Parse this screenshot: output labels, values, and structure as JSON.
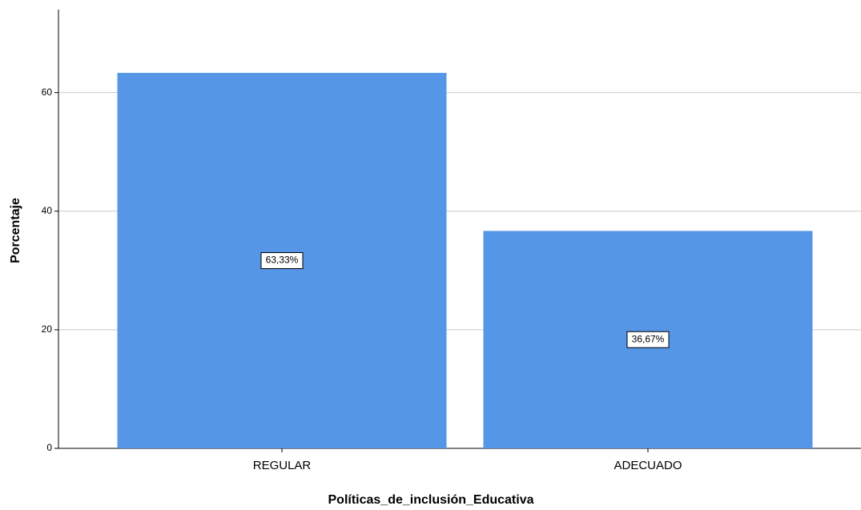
{
  "chart_data": {
    "type": "bar",
    "categories": [
      "REGULAR",
      "ADECUADO"
    ],
    "values": [
      63.33,
      36.67
    ],
    "value_labels": [
      "63,33%",
      "36,67%"
    ],
    "color": "#5596e6",
    "ylim": [
      0,
      74
    ],
    "yticks": [
      0,
      20,
      40,
      60
    ],
    "grid": true,
    "xlabel": "Políticas_de_inclusión_Educativa",
    "ylabel": "Porcentaje"
  }
}
